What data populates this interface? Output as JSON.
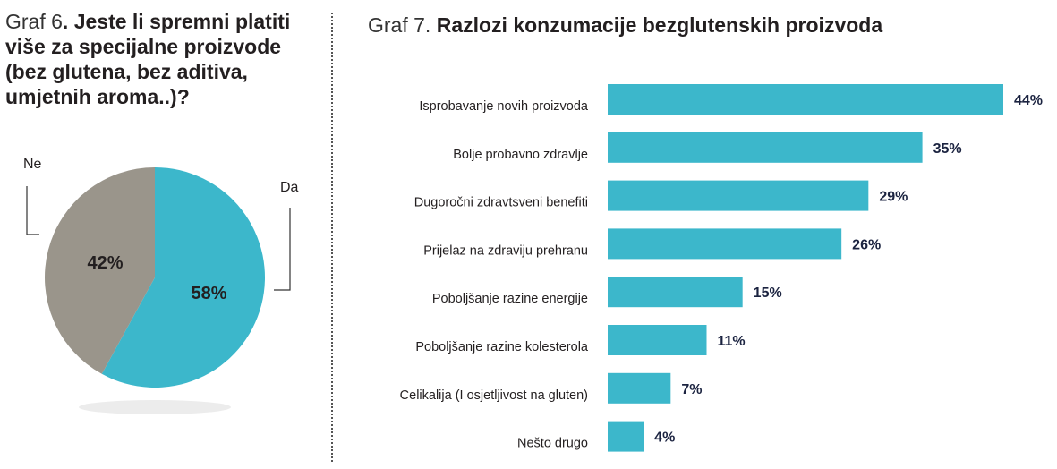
{
  "graf6": {
    "prefix": "Graf 6",
    "title": ". Jeste li spremni platiti više za specijalne proizvode (bez glutena, bez aditiva, umjetnih aroma..)?"
  },
  "graf7": {
    "prefix": "Graf 7. ",
    "title": "Razlozi konzumacije bezglutenskih proizvoda"
  },
  "chart_data": [
    {
      "type": "pie",
      "title": "Graf 6. Jeste li spremni platiti više za specijalne proizvode (bez glutena, bez aditiva, umjetnih aroma..)?",
      "slices": [
        {
          "label": "Da",
          "value": 58,
          "value_label": "58%",
          "color": "#3cb7cb"
        },
        {
          "label": "Ne",
          "value": 42,
          "value_label": "42%",
          "color": "#9a958b"
        }
      ]
    },
    {
      "type": "bar",
      "orientation": "horizontal",
      "title": "Graf 7. Razlozi konzumacije bezglutenskih proizvoda",
      "categories": [
        "Isprobavanje novih proizvoda",
        "Bolje probavno zdravlje",
        "Dugoročni zdravtsveni benefiti",
        "Prijelaz na zdraviju prehranu",
        "Poboljšanje razine energije",
        "Poboljšanje razine kolesterola",
        "Celikalija (I osjetljivost na gluten)",
        "Nešto drugo"
      ],
      "values": [
        44,
        35,
        29,
        26,
        15,
        11,
        7,
        4
      ],
      "value_labels": [
        "44%",
        "35%",
        "29%",
        "26%",
        "15%",
        "11%",
        "7%",
        "4%"
      ],
      "bar_color": "#3cb7cb",
      "value_label_color": "#1b2340"
    }
  ]
}
